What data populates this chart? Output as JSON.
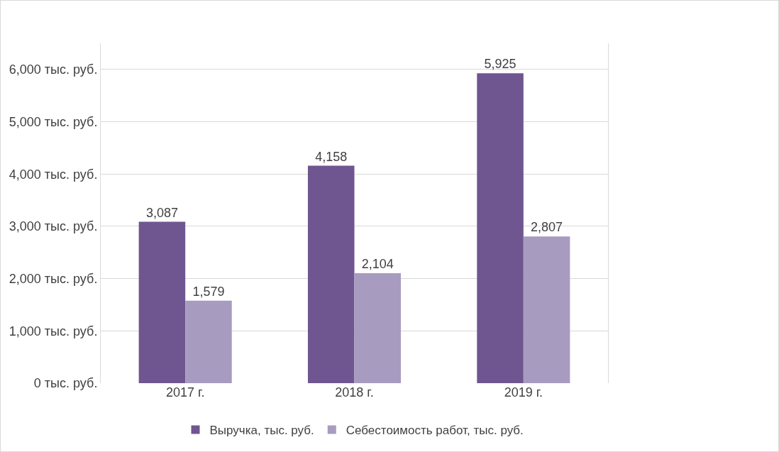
{
  "chart_data": {
    "type": "bar",
    "categories": [
      "2017 г.",
      "2018 г.",
      "2019 г."
    ],
    "series": [
      {
        "name": "Выручка, тыс. руб.",
        "color": "#6f5690",
        "values": [
          3087,
          4158,
          5925
        ],
        "value_labels": [
          "3,087",
          "4,158",
          "5,925"
        ]
      },
      {
        "name": "Себестоимость работ, тыс. руб.",
        "color": "#a89bc0",
        "values": [
          1579,
          2104,
          2807
        ],
        "value_labels": [
          "1,579",
          "2,104",
          "2,807"
        ]
      }
    ],
    "ylim": [
      0,
      6500
    ],
    "yticks": [
      {
        "value": 0,
        "label": "0 тыс. руб."
      },
      {
        "value": 1000,
        "label": "1,000 тыс. руб."
      },
      {
        "value": 2000,
        "label": "2,000 тыс. руб."
      },
      {
        "value": 3000,
        "label": "3,000 тыс. руб."
      },
      {
        "value": 4000,
        "label": "4,000 тыс. руб."
      },
      {
        "value": 5000,
        "label": "5,000 тыс. руб."
      },
      {
        "value": 6000,
        "label": "6,000 тыс. руб."
      }
    ],
    "grid": "y",
    "legend": "bottom"
  }
}
